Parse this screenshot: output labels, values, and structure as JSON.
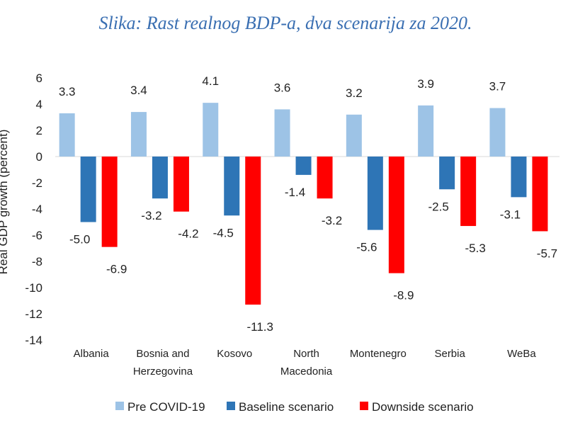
{
  "caption": "Slika: Rast realnog BDP-a, dva scenarija za 2020.",
  "colors": {
    "pre": "#9dc3e6",
    "baseline": "#2e75b6",
    "downside": "#ff0000",
    "text": "#222222"
  },
  "chart_data": {
    "type": "bar",
    "title": "",
    "xlabel": "",
    "ylabel": "Real GDP growth (percent)",
    "ylim": [
      -14,
      6
    ],
    "yticks": [
      6,
      4,
      2,
      0,
      -2,
      -4,
      -6,
      -8,
      -10,
      -12,
      -14
    ],
    "grid": false,
    "legend_position": "bottom",
    "categories": [
      "Albania",
      "Bosnia and Herzegovina",
      "Kosovo",
      "North Macedonia",
      "Montenegro",
      "Serbia",
      "WeBa"
    ],
    "category_lines": [
      [
        "Albania"
      ],
      [
        "Bosnia and",
        "Herzegovina"
      ],
      [
        "Kosovo"
      ],
      [
        "North",
        "Macedonia"
      ],
      [
        "Montenegro"
      ],
      [
        "Serbia"
      ],
      [
        "WeBa"
      ]
    ],
    "series": [
      {
        "name": "Pre COVID-19",
        "key": "pre",
        "values": [
          3.3,
          3.4,
          4.1,
          3.6,
          3.2,
          3.9,
          3.7
        ],
        "labels": [
          "3.3",
          "3.4",
          "4.1",
          "3.6",
          "3.2",
          "3.9",
          "3.7"
        ]
      },
      {
        "name": "Baseline scenario",
        "key": "baseline",
        "values": [
          -5.0,
          -3.2,
          -4.5,
          -1.4,
          -5.6,
          -2.5,
          -3.1
        ],
        "labels": [
          "-5.0",
          "-3.2",
          "-4.5",
          "-1.4",
          "-5.6",
          "-2.5",
          "-3.1"
        ]
      },
      {
        "name": "Downside scenario",
        "key": "downside",
        "values": [
          -6.9,
          -4.2,
          -11.3,
          -3.2,
          -8.9,
          -5.3,
          -5.7
        ],
        "labels": [
          "-6.9",
          "-4.2",
          "-11.3",
          "-3.2",
          "-8.9",
          "-5.3",
          "-5.7"
        ]
      }
    ]
  }
}
